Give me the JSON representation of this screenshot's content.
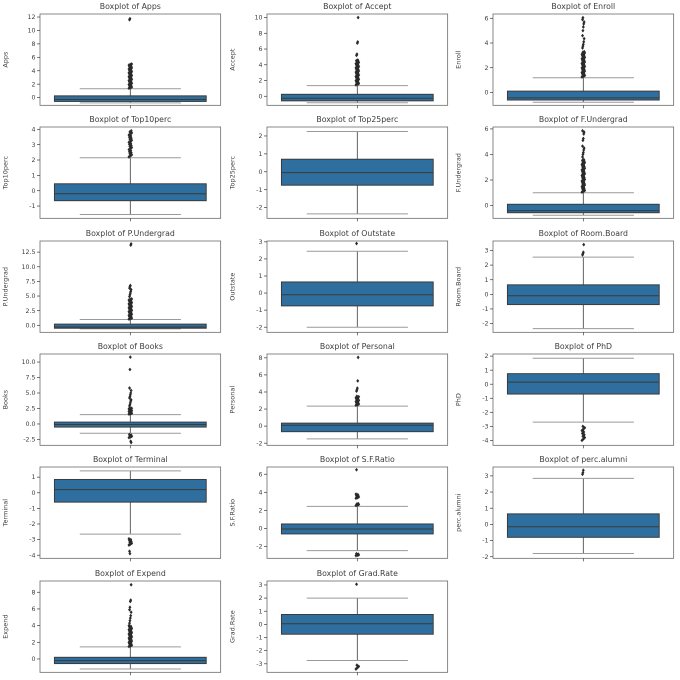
{
  "figure": {
    "background": "#ffffff",
    "box_fill": "#2e6f9f",
    "box_edge": "#3b3b3b",
    "median_color": "#3a3a35",
    "whisker_color": "#4f4f4f",
    "cap_color": "#9a9a9a",
    "flier_color": "#2a2a2a",
    "spine_color": "#6b6b6b",
    "text_color": "#3d3d3d",
    "rows": 6,
    "cols": 3
  },
  "chart_data": [
    {
      "type": "boxplot",
      "title": "Boxplot of Apps",
      "ylabel": "Apps",
      "ylim": [
        -1.15,
        12.45
      ],
      "yticks": [
        0,
        2,
        4,
        6,
        8,
        10,
        12
      ],
      "ytick_labels": [
        "0",
        "2",
        "4",
        "6",
        "8",
        "10",
        "12"
      ],
      "stats": {
        "whisker_low": -0.78,
        "q1": -0.57,
        "median": -0.28,
        "q3": 0.26,
        "whisker_high": 1.32
      },
      "outlier_clusters": [
        {
          "from": 1.4,
          "to": 5.0,
          "count": 45
        }
      ],
      "outliers": [
        11.6,
        11.75
      ]
    },
    {
      "type": "boxplot",
      "title": "Boxplot of Accept",
      "ylabel": "Accept",
      "ylim": [
        -1.15,
        10.45
      ],
      "yticks": [
        0,
        2,
        4,
        6,
        8,
        10
      ],
      "ytick_labels": [
        "0",
        "2",
        "4",
        "6",
        "8",
        "10"
      ],
      "stats": {
        "whisker_low": -0.82,
        "q1": -0.58,
        "median": -0.25,
        "q3": 0.25,
        "whisker_high": 1.35
      },
      "outlier_clusters": [
        {
          "from": 1.45,
          "to": 4.6,
          "count": 42
        }
      ],
      "outliers": [
        5.2,
        5.35,
        6.75,
        6.9,
        10.0
      ]
    },
    {
      "type": "boxplot",
      "title": "Boxplot of Enroll",
      "ylabel": "Enroll",
      "ylim": [
        -1.05,
        6.35
      ],
      "yticks": [
        0,
        2,
        4,
        6
      ],
      "ytick_labels": [
        "0",
        "2",
        "4",
        "6"
      ],
      "stats": {
        "whisker_low": -0.8,
        "q1": -0.62,
        "median": -0.45,
        "q3": 0.1,
        "whisker_high": 1.18
      },
      "outlier_clusters": [
        {
          "from": 1.25,
          "to": 3.3,
          "count": 40
        }
      ],
      "outliers": [
        3.6,
        3.75,
        3.9,
        4.1,
        4.35,
        4.6,
        5.0,
        5.3,
        5.55,
        5.7,
        5.9,
        6.05
      ]
    },
    {
      "type": "boxplot",
      "title": "Boxplot of Top10perc",
      "ylabel": "Top10perc",
      "ylim": [
        -1.8,
        4.15
      ],
      "yticks": [
        -1,
        0,
        1,
        2,
        3,
        4
      ],
      "ytick_labels": [
        "-1",
        "0",
        "1",
        "2",
        "3",
        "4"
      ],
      "stats": {
        "whisker_low": -1.55,
        "q1": -0.65,
        "median": -0.2,
        "q3": 0.45,
        "whisker_high": 2.15
      },
      "outlier_clusters": [
        {
          "from": 2.2,
          "to": 3.9,
          "count": 26
        }
      ],
      "outliers": []
    },
    {
      "type": "boxplot",
      "title": "Boxplot of Top25perc",
      "ylabel": "Top25perc",
      "ylim": [
        -2.6,
        2.5
      ],
      "yticks": [
        -2,
        -1,
        0,
        1,
        2
      ],
      "ytick_labels": [
        "-2",
        "-1",
        "0",
        "1",
        "2"
      ],
      "stats": {
        "whisker_low": -2.35,
        "q1": -0.75,
        "median": -0.05,
        "q3": 0.7,
        "whisker_high": 2.25
      },
      "outlier_clusters": [],
      "outliers": []
    },
    {
      "type": "boxplot",
      "title": "Boxplot of F.Undergrad",
      "ylabel": "F.Undergrad",
      "ylim": [
        -1.0,
        6.15
      ],
      "yticks": [
        0,
        2,
        4,
        6
      ],
      "ytick_labels": [
        "0",
        "2",
        "4",
        "6"
      ],
      "stats": {
        "whisker_low": -0.76,
        "q1": -0.56,
        "median": -0.4,
        "q3": 0.1,
        "whisker_high": 1.0
      },
      "outlier_clusters": [
        {
          "from": 1.05,
          "to": 3.6,
          "count": 42
        }
      ],
      "outliers": [
        3.8,
        4.0,
        4.15,
        4.35,
        4.5,
        4.65,
        5.1,
        5.25,
        5.6,
        5.75,
        5.85
      ]
    },
    {
      "type": "boxplot",
      "title": "Boxplot of P.Undergrad",
      "ylabel": "P.Undergrad",
      "ylim": [
        -1.2,
        14.4
      ],
      "yticks": [
        0.0,
        2.5,
        5.0,
        7.5,
        10.0,
        12.5
      ],
      "ytick_labels": [
        "0.0",
        "2.5",
        "5.0",
        "7.5",
        "10.0",
        "12.5"
      ],
      "stats": {
        "whisker_low": -0.6,
        "q1": -0.5,
        "median": -0.3,
        "q3": 0.2,
        "whisker_high": 1.0
      },
      "outlier_clusters": [
        {
          "from": 1.05,
          "to": 4.5,
          "count": 38
        }
      ],
      "outliers": [
        4.9,
        5.2,
        5.5,
        5.8,
        6.1,
        6.35,
        6.6,
        6.8,
        13.7,
        13.9
      ]
    },
    {
      "type": "boxplot",
      "title": "Boxplot of Outstate",
      "ylabel": "Outstate",
      "ylim": [
        -2.3,
        3.05
      ],
      "yticks": [
        -2,
        -1,
        0,
        1,
        2,
        3
      ],
      "ytick_labels": [
        "-2",
        "-1",
        "0",
        "1",
        "2",
        "3"
      ],
      "stats": {
        "whisker_low": -2.0,
        "q1": -0.75,
        "median": -0.1,
        "q3": 0.65,
        "whisker_high": 2.45
      },
      "outlier_clusters": [],
      "outliers": [
        2.9
      ]
    },
    {
      "type": "boxplot",
      "title": "Boxplot of Room.Board",
      "ylabel": "Room.Board",
      "ylim": [
        -2.6,
        3.65
      ],
      "yticks": [
        -2,
        -1,
        0,
        1,
        2,
        3
      ],
      "ytick_labels": [
        "-2",
        "-1",
        "0",
        "1",
        "2",
        "3"
      ],
      "stats": {
        "whisker_low": -2.35,
        "q1": -0.7,
        "median": -0.1,
        "q3": 0.65,
        "whisker_high": 2.55
      },
      "outlier_clusters": [],
      "outliers": [
        2.7,
        2.78,
        2.88,
        3.4
      ]
    },
    {
      "type": "boxplot",
      "title": "Boxplot of Books",
      "ylabel": "Books",
      "ylim": [
        -3.45,
        11.3
      ],
      "yticks": [
        -2.5,
        0.0,
        2.5,
        5.0,
        7.5,
        10.0
      ],
      "ytick_labels": [
        "-2.5",
        "0.0",
        "2.5",
        "5.0",
        "7.5",
        "10.0"
      ],
      "stats": {
        "whisker_low": -1.5,
        "q1": -0.5,
        "median": -0.08,
        "q3": 0.3,
        "whisker_high": 1.5
      },
      "outlier_clusters": [
        {
          "from": 1.6,
          "to": 2.6,
          "count": 18
        },
        {
          "from": -2.2,
          "to": -1.7,
          "count": 6
        }
      ],
      "outliers": [
        2.9,
        3.1,
        3.4,
        3.7,
        3.9,
        4.2,
        4.4,
        4.7,
        5.0,
        5.4,
        5.8,
        8.8,
        10.8,
        -2.8,
        -3.0
      ]
    },
    {
      "type": "boxplot",
      "title": "Boxplot of Personal",
      "ylabel": "Personal",
      "ylim": [
        -2.25,
        8.45
      ],
      "yticks": [
        -2,
        0,
        2,
        4,
        6,
        8
      ],
      "ytick_labels": [
        "-2",
        "0",
        "2",
        "4",
        "6",
        "8"
      ],
      "stats": {
        "whisker_low": -1.5,
        "q1": -0.65,
        "median": 0.1,
        "q3": 0.35,
        "whisker_high": 2.35
      },
      "outlier_clusters": [
        {
          "from": 2.45,
          "to": 3.5,
          "count": 18
        }
      ],
      "outliers": [
        4.1,
        4.25,
        4.45,
        5.3,
        8.05
      ]
    },
    {
      "type": "boxplot",
      "title": "Boxplot of PhD",
      "ylabel": "PhD",
      "ylim": [
        -4.35,
        2.15
      ],
      "yticks": [
        -4,
        -3,
        -2,
        -1,
        0,
        1,
        2
      ],
      "ytick_labels": [
        "-4",
        "-3",
        "-2",
        "-1",
        "0",
        "1",
        "2"
      ],
      "stats": {
        "whisker_low": -2.7,
        "q1": -0.7,
        "median": 0.15,
        "q3": 0.75,
        "whisker_high": 1.85
      },
      "outlier_clusters": [
        {
          "from": -4.0,
          "to": -3.0,
          "count": 11
        }
      ],
      "outliers": []
    },
    {
      "type": "boxplot",
      "title": "Boxplot of Terminal",
      "ylabel": "Terminal",
      "ylim": [
        -4.2,
        1.65
      ],
      "yticks": [
        -4,
        -3,
        -2,
        -1,
        0,
        1
      ],
      "ytick_labels": [
        "-4",
        "-3",
        "-2",
        "-1",
        "0",
        "1"
      ],
      "stats": {
        "whisker_low": -2.65,
        "q1": -0.6,
        "median": 0.2,
        "q3": 0.85,
        "whisker_high": 1.4
      },
      "outlier_clusters": [
        {
          "from": -3.35,
          "to": -2.95,
          "count": 8
        }
      ],
      "outliers": [
        -3.75,
        -3.9
      ]
    },
    {
      "type": "boxplot",
      "title": "Boxplot of S.F.Ratio",
      "ylabel": "S.F.Ratio",
      "ylim": [
        -3.3,
        6.8
      ],
      "yticks": [
        -2,
        0,
        2,
        4,
        6
      ],
      "ytick_labels": [
        "-2",
        "0",
        "2",
        "4",
        "6"
      ],
      "stats": {
        "whisker_low": -2.45,
        "q1": -0.6,
        "median": -0.05,
        "q3": 0.5,
        "whisker_high": 2.45
      },
      "outlier_clusters": [
        {
          "from": 2.55,
          "to": 2.75,
          "count": 5
        },
        {
          "from": 3.35,
          "to": 3.8,
          "count": 8
        },
        {
          "from": -3.0,
          "to": -2.8,
          "count": 6
        }
      ],
      "outliers": [
        6.5
      ]
    },
    {
      "type": "boxplot",
      "title": "Boxplot of perc.alumni",
      "ylabel": "perc.alumni",
      "ylim": [
        -2.1,
        3.55
      ],
      "yticks": [
        -2,
        -1,
        0,
        1,
        2,
        3
      ],
      "ytick_labels": [
        "-2",
        "-1",
        "0",
        "1",
        "2",
        "3"
      ],
      "stats": {
        "whisker_low": -1.8,
        "q1": -0.8,
        "median": -0.15,
        "q3": 0.65,
        "whisker_high": 2.85
      },
      "outlier_clusters": [],
      "outliers": [
        3.1,
        3.2,
        3.35
      ]
    },
    {
      "type": "boxplot",
      "title": "Boxplot of Expend",
      "ylabel": "Expend",
      "ylim": [
        -1.6,
        9.35
      ],
      "yticks": [
        0,
        2,
        4,
        6,
        8
      ],
      "ytick_labels": [
        "0",
        "2",
        "4",
        "6",
        "8"
      ],
      "stats": {
        "whisker_low": -1.2,
        "q1": -0.55,
        "median": -0.2,
        "q3": 0.2,
        "whisker_high": 1.45
      },
      "outlier_clusters": [
        {
          "from": 1.5,
          "to": 4.0,
          "count": 36
        }
      ],
      "outliers": [
        4.3,
        4.6,
        4.9,
        5.2,
        5.6,
        5.9,
        6.2,
        6.9,
        7.05,
        8.9
      ]
    },
    {
      "type": "boxplot",
      "title": "Boxplot of Grad.Rate",
      "ylabel": "Grad.Rate",
      "ylim": [
        -3.65,
        3.3
      ],
      "yticks": [
        -3,
        -2,
        -1,
        0,
        1,
        2,
        3
      ],
      "ytick_labels": [
        "-3",
        "-2",
        "-1",
        "0",
        "1",
        "2",
        "3"
      ],
      "stats": {
        "whisker_low": -2.75,
        "q1": -0.75,
        "median": 0.05,
        "q3": 0.75,
        "whisker_high": 2.0
      },
      "outlier_clusters": [
        {
          "from": -3.4,
          "to": -3.1,
          "count": 4
        }
      ],
      "outliers": [
        3.05
      ]
    }
  ]
}
